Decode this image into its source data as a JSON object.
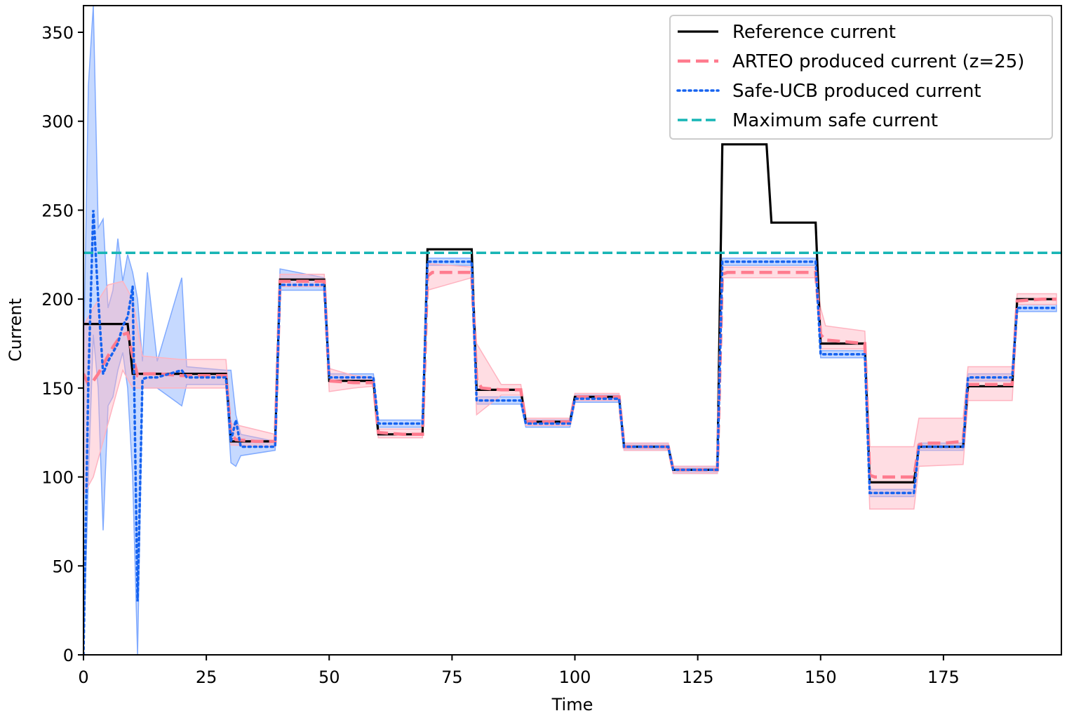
{
  "chart_data": {
    "type": "line",
    "title": "",
    "xlabel": "Time",
    "ylabel": "Current",
    "xlim": [
      0,
      199
    ],
    "ylim": [
      0,
      365
    ],
    "xticks": [
      0,
      25,
      50,
      75,
      100,
      125,
      150,
      175
    ],
    "yticks": [
      0,
      50,
      100,
      150,
      200,
      250,
      300,
      350
    ],
    "grid": false,
    "legend_position": "top-right",
    "colors": {
      "reference": "#000000",
      "arteo": "#ff7b8e",
      "arteo_band": "#ffb3c0",
      "safe_ucb": "#1663f0",
      "safe_ucb_band": "#80aaff",
      "max_safe": "#17b5b5"
    },
    "series": [
      {
        "name": "Reference current",
        "style": "solid",
        "steps": [
          {
            "x0": 0,
            "x1": 9,
            "y": 186
          },
          {
            "x0": 10,
            "x1": 29,
            "y": 158
          },
          {
            "x0": 30,
            "x1": 39,
            "y": 120
          },
          {
            "x0": 40,
            "x1": 49,
            "y": 211
          },
          {
            "x0": 50,
            "x1": 59,
            "y": 154
          },
          {
            "x0": 60,
            "x1": 69,
            "y": 124
          },
          {
            "x0": 70,
            "x1": 79,
            "y": 228
          },
          {
            "x0": 80,
            "x1": 89,
            "y": 149
          },
          {
            "x0": 90,
            "x1": 99,
            "y": 131
          },
          {
            "x0": 100,
            "x1": 109,
            "y": 145
          },
          {
            "x0": 110,
            "x1": 119,
            "y": 117
          },
          {
            "x0": 120,
            "x1": 129,
            "y": 104
          },
          {
            "x0": 130,
            "x1": 139,
            "y": 287
          },
          {
            "x0": 140,
            "x1": 149,
            "y": 243
          },
          {
            "x0": 150,
            "x1": 159,
            "y": 175
          },
          {
            "x0": 160,
            "x1": 169,
            "y": 97
          },
          {
            "x0": 170,
            "x1": 179,
            "y": 117
          },
          {
            "x0": 180,
            "x1": 189,
            "y": 151
          },
          {
            "x0": 190,
            "x1": 198,
            "y": 200
          }
        ]
      },
      {
        "name": "ARTEO produced current (z=25)",
        "style": "dashed",
        "points": [
          [
            0,
            158
          ],
          [
            1,
            152
          ],
          [
            2,
            154
          ],
          [
            3,
            158
          ],
          [
            4,
            163
          ],
          [
            5,
            168
          ],
          [
            6,
            173
          ],
          [
            7,
            177
          ],
          [
            8,
            180
          ],
          [
            9,
            181
          ],
          [
            10,
            168
          ],
          [
            11,
            157
          ],
          [
            12,
            158
          ],
          [
            15,
            158
          ],
          [
            20,
            157
          ],
          [
            25,
            157
          ],
          [
            29,
            157
          ],
          [
            30,
            124
          ],
          [
            31,
            121
          ],
          [
            35,
            120
          ],
          [
            39,
            120
          ],
          [
            40,
            210
          ],
          [
            45,
            210
          ],
          [
            49,
            210
          ],
          [
            50,
            154
          ],
          [
            55,
            153
          ],
          [
            59,
            153
          ],
          [
            60,
            125
          ],
          [
            65,
            124
          ],
          [
            69,
            124
          ],
          [
            70,
            213
          ],
          [
            71,
            215
          ],
          [
            75,
            215
          ],
          [
            79,
            215
          ],
          [
            80,
            155
          ],
          [
            81,
            150
          ],
          [
            85,
            149
          ],
          [
            89,
            149
          ],
          [
            90,
            131
          ],
          [
            95,
            131
          ],
          [
            99,
            131
          ],
          [
            100,
            145
          ],
          [
            105,
            145
          ],
          [
            109,
            145
          ],
          [
            110,
            117
          ],
          [
            115,
            117
          ],
          [
            119,
            117
          ],
          [
            120,
            104
          ],
          [
            125,
            104
          ],
          [
            129,
            104
          ],
          [
            130,
            214
          ],
          [
            131,
            215
          ],
          [
            135,
            215
          ],
          [
            140,
            215
          ],
          [
            145,
            215
          ],
          [
            149,
            215
          ],
          [
            150,
            180
          ],
          [
            151,
            177
          ],
          [
            155,
            176
          ],
          [
            159,
            175
          ],
          [
            160,
            101
          ],
          [
            161,
            100
          ],
          [
            165,
            100
          ],
          [
            169,
            100
          ],
          [
            170,
            118
          ],
          [
            171,
            119
          ],
          [
            175,
            119
          ],
          [
            179,
            120
          ],
          [
            180,
            152
          ],
          [
            185,
            152
          ],
          [
            189,
            152
          ],
          [
            190,
            199
          ],
          [
            195,
            200
          ],
          [
            198,
            200
          ]
        ],
        "band": [
          [
            0,
            90,
            185
          ],
          [
            2,
            100,
            195
          ],
          [
            5,
            130,
            208
          ],
          [
            8,
            160,
            210
          ],
          [
            10,
            150,
            200
          ],
          [
            12,
            150,
            168
          ],
          [
            20,
            150,
            166
          ],
          [
            29,
            150,
            166
          ],
          [
            30,
            118,
            130
          ],
          [
            39,
            117,
            124
          ],
          [
            40,
            207,
            214
          ],
          [
            49,
            207,
            214
          ],
          [
            50,
            148,
            161
          ],
          [
            55,
            150,
            157
          ],
          [
            59,
            151,
            156
          ],
          [
            60,
            122,
            127
          ],
          [
            69,
            122,
            127
          ],
          [
            70,
            205,
            220
          ],
          [
            79,
            212,
            218
          ],
          [
            80,
            135,
            175
          ],
          [
            85,
            146,
            152
          ],
          [
            89,
            146,
            152
          ],
          [
            90,
            129,
            133
          ],
          [
            99,
            129,
            133
          ],
          [
            100,
            143,
            147
          ],
          [
            109,
            143,
            147
          ],
          [
            110,
            115,
            119
          ],
          [
            119,
            115,
            119
          ],
          [
            120,
            102,
            106
          ],
          [
            129,
            102,
            106
          ],
          [
            130,
            212,
            218
          ],
          [
            149,
            212,
            218
          ],
          [
            150,
            172,
            195
          ],
          [
            151,
            172,
            185
          ],
          [
            159,
            172,
            182
          ],
          [
            160,
            82,
            117
          ],
          [
            169,
            82,
            117
          ],
          [
            170,
            106,
            133
          ],
          [
            179,
            107,
            133
          ],
          [
            180,
            143,
            162
          ],
          [
            189,
            143,
            162
          ],
          [
            190,
            197,
            203
          ],
          [
            198,
            197,
            203
          ]
        ]
      },
      {
        "name": "Safe-UCB produced current",
        "style": "dotted",
        "points": [
          [
            0,
            0
          ],
          [
            1,
            155
          ],
          [
            2,
            250
          ],
          [
            3,
            200
          ],
          [
            4,
            158
          ],
          [
            5,
            165
          ],
          [
            6,
            170
          ],
          [
            7,
            175
          ],
          [
            8,
            185
          ],
          [
            9,
            190
          ],
          [
            10,
            207
          ],
          [
            11,
            30
          ],
          [
            12,
            155
          ],
          [
            13,
            156
          ],
          [
            15,
            156
          ],
          [
            20,
            160
          ],
          [
            21,
            156
          ],
          [
            29,
            156
          ],
          [
            30,
            120
          ],
          [
            31,
            132
          ],
          [
            32,
            117
          ],
          [
            35,
            117
          ],
          [
            39,
            117
          ],
          [
            40,
            208
          ],
          [
            45,
            208
          ],
          [
            49,
            208
          ],
          [
            50,
            156
          ],
          [
            55,
            156
          ],
          [
            59,
            156
          ],
          [
            60,
            130
          ],
          [
            65,
            130
          ],
          [
            69,
            130
          ],
          [
            70,
            221
          ],
          [
            75,
            221
          ],
          [
            79,
            221
          ],
          [
            80,
            143
          ],
          [
            85,
            143
          ],
          [
            89,
            143
          ],
          [
            90,
            130
          ],
          [
            95,
            130
          ],
          [
            99,
            130
          ],
          [
            100,
            144
          ],
          [
            105,
            144
          ],
          [
            109,
            144
          ],
          [
            110,
            117
          ],
          [
            115,
            117
          ],
          [
            119,
            117
          ],
          [
            120,
            104
          ],
          [
            125,
            104
          ],
          [
            129,
            104
          ],
          [
            130,
            221
          ],
          [
            135,
            221
          ],
          [
            140,
            221
          ],
          [
            145,
            221
          ],
          [
            149,
            221
          ],
          [
            150,
            169
          ],
          [
            155,
            169
          ],
          [
            159,
            169
          ],
          [
            160,
            91
          ],
          [
            165,
            91
          ],
          [
            169,
            91
          ],
          [
            170,
            117
          ],
          [
            175,
            117
          ],
          [
            179,
            117
          ],
          [
            180,
            156
          ],
          [
            185,
            156
          ],
          [
            189,
            156
          ],
          [
            190,
            195
          ],
          [
            195,
            195
          ],
          [
            198,
            195
          ]
        ],
        "band": [
          [
            0,
            0,
            160
          ],
          [
            1,
            100,
            320
          ],
          [
            2,
            180,
            365
          ],
          [
            3,
            150,
            240
          ],
          [
            4,
            70,
            245
          ],
          [
            5,
            140,
            195
          ],
          [
            6,
            145,
            205
          ],
          [
            7,
            160,
            234
          ],
          [
            8,
            170,
            210
          ],
          [
            9,
            150,
            225
          ],
          [
            10,
            100,
            215
          ],
          [
            11,
            0,
            200
          ],
          [
            12,
            150,
            165
          ],
          [
            13,
            150,
            215
          ],
          [
            15,
            150,
            165
          ],
          [
            20,
            140,
            212
          ],
          [
            21,
            152,
            162
          ],
          [
            29,
            152,
            160
          ],
          [
            30,
            108,
            160
          ],
          [
            31,
            106,
            135
          ],
          [
            32,
            112,
            124
          ],
          [
            39,
            115,
            120
          ],
          [
            40,
            205,
            217
          ],
          [
            49,
            205,
            212
          ],
          [
            50,
            154,
            158
          ],
          [
            59,
            154,
            158
          ],
          [
            60,
            128,
            132
          ],
          [
            69,
            128,
            132
          ],
          [
            70,
            219,
            223
          ],
          [
            79,
            219,
            223
          ],
          [
            80,
            141,
            145
          ],
          [
            89,
            141,
            145
          ],
          [
            90,
            128,
            132
          ],
          [
            99,
            128,
            132
          ],
          [
            100,
            142,
            146
          ],
          [
            109,
            142,
            146
          ],
          [
            110,
            115,
            119
          ],
          [
            119,
            115,
            119
          ],
          [
            120,
            102,
            106
          ],
          [
            129,
            102,
            106
          ],
          [
            130,
            219,
            223
          ],
          [
            149,
            219,
            223
          ],
          [
            150,
            167,
            171
          ],
          [
            159,
            167,
            171
          ],
          [
            160,
            89,
            93
          ],
          [
            169,
            89,
            93
          ],
          [
            170,
            115,
            119
          ],
          [
            179,
            115,
            119
          ],
          [
            180,
            154,
            158
          ],
          [
            189,
            154,
            158
          ],
          [
            190,
            193,
            197
          ],
          [
            198,
            193,
            197
          ]
        ]
      },
      {
        "name": "Maximum safe current",
        "style": "dashed",
        "y": 226
      }
    ]
  }
}
